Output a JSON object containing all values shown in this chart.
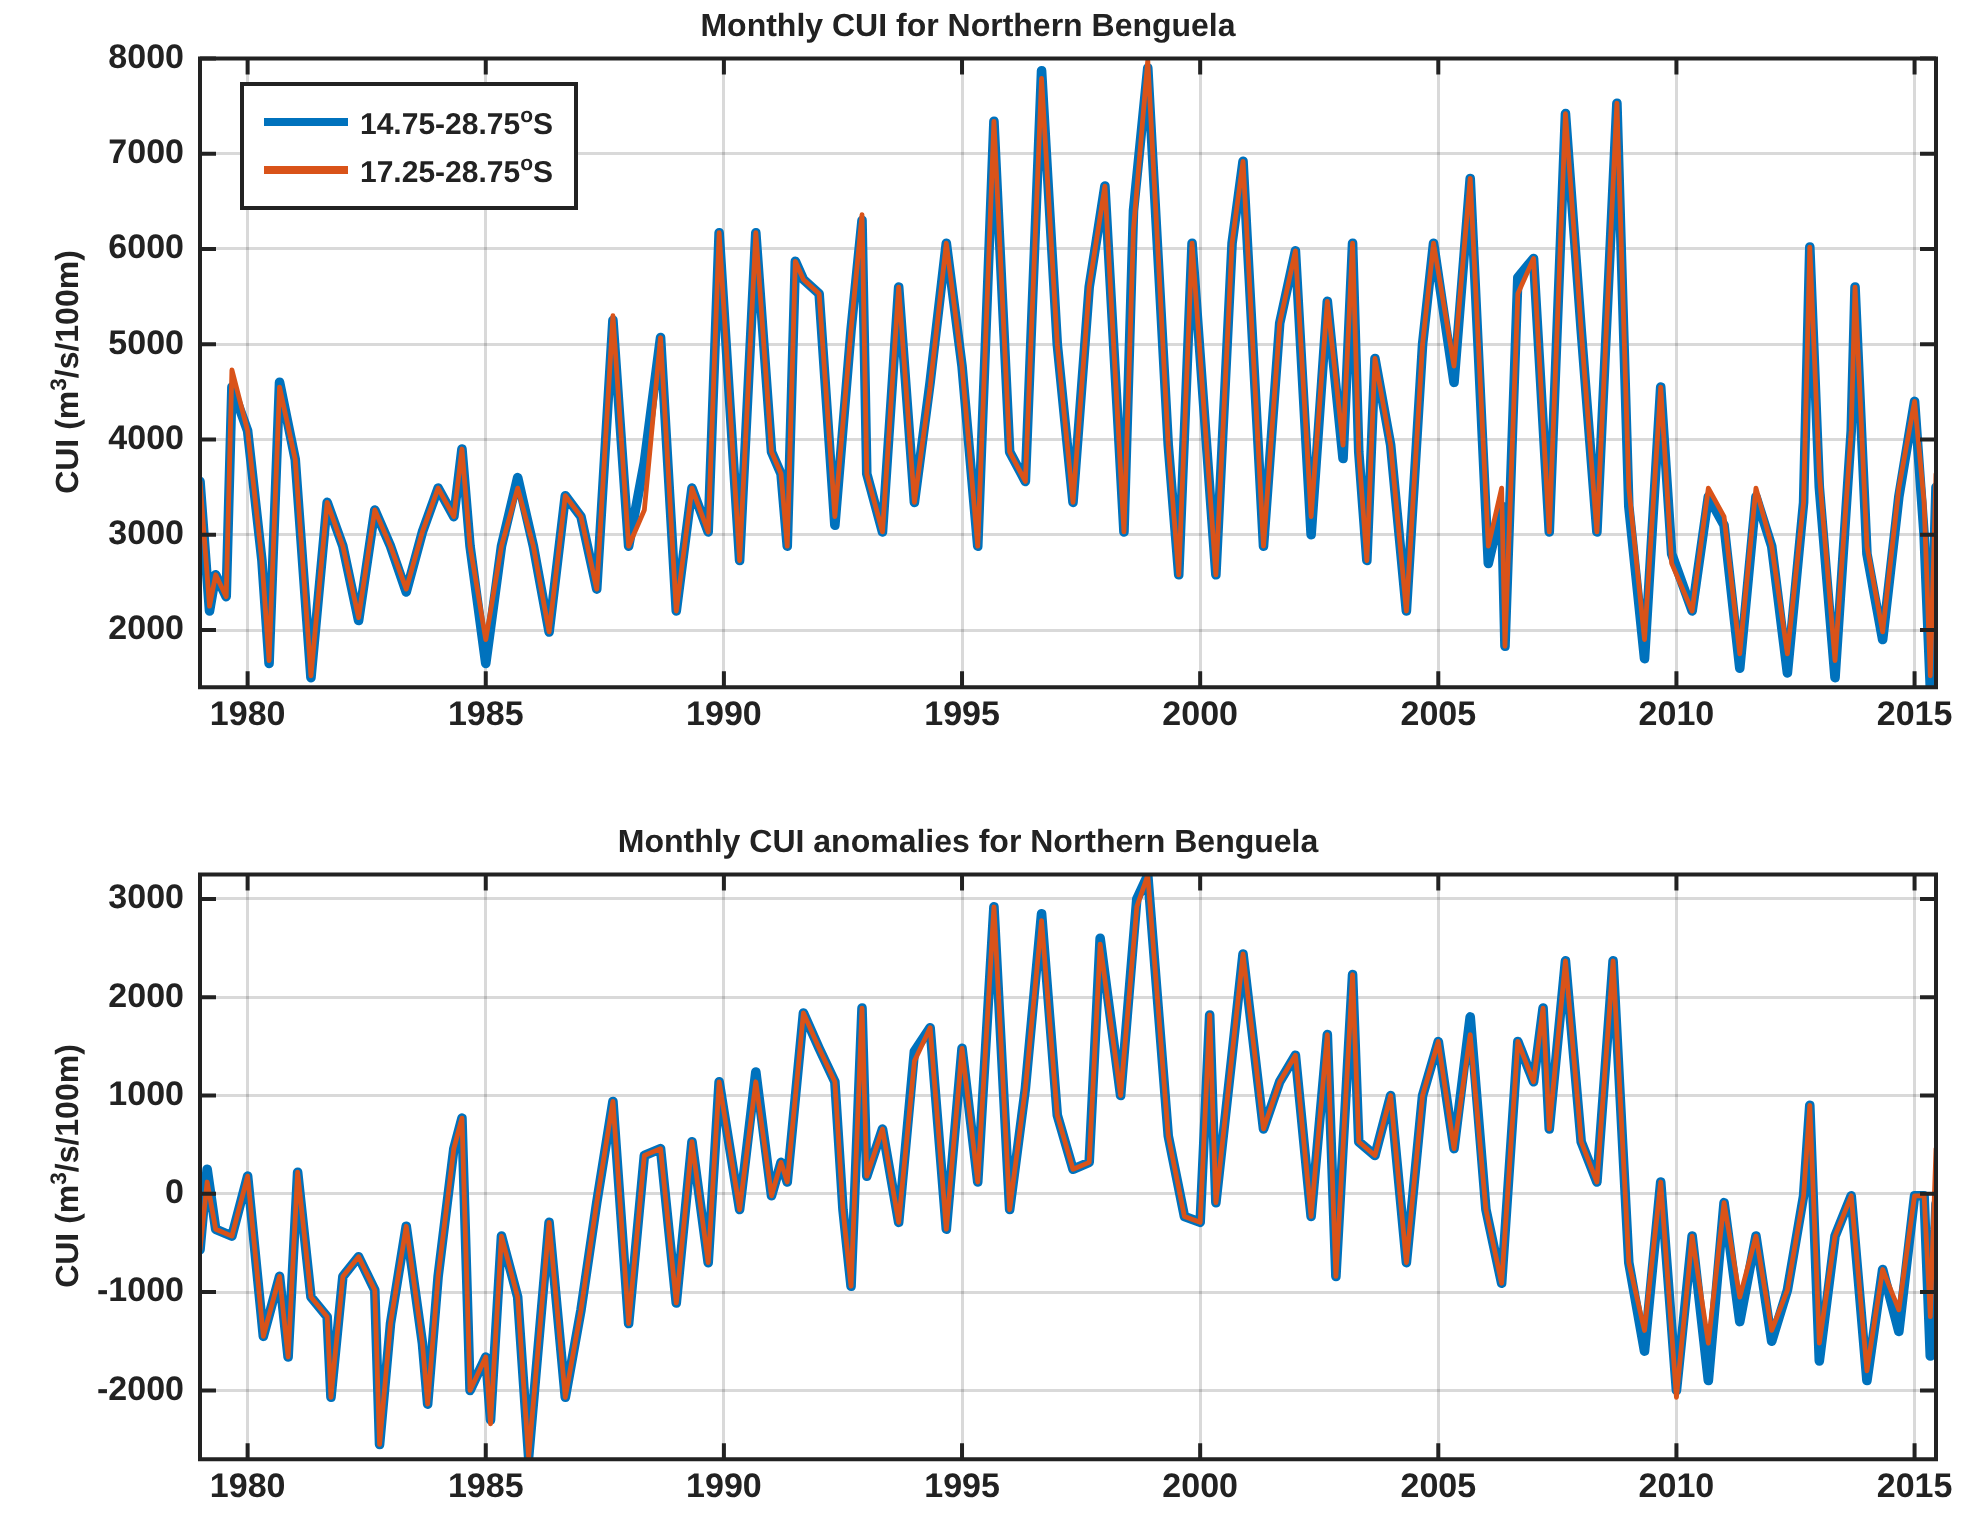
{
  "chart_data": [
    {
      "type": "line",
      "title": "Monthly CUI for Northern Benguela",
      "ylabel": "CUI (m$^{3}$/s/100m)",
      "xlim": [
        1979,
        2015.45
      ],
      "xticks": [
        1980,
        1985,
        1990,
        1995,
        2000,
        2005,
        2010,
        2015
      ],
      "ylim": [
        1400,
        8000
      ],
      "yticks": [
        2000,
        3000,
        4000,
        5000,
        6000,
        7000,
        8000
      ],
      "grid": true,
      "legend": "top left",
      "marker": "none",
      "line_style": "solid",
      "x": [
        1979.0,
        1979.2,
        1979.33,
        1979.55,
        1979.67,
        1980.0,
        1980.3,
        1980.45,
        1980.67,
        1981.0,
        1981.33,
        1981.67,
        1982.0,
        1982.33,
        1982.67,
        1983.0,
        1983.33,
        1983.67,
        1984.0,
        1984.33,
        1984.5,
        1984.67,
        1985.0,
        1985.33,
        1985.67,
        1986.0,
        1986.33,
        1986.67,
        1987.0,
        1987.33,
        1987.67,
        1988.0,
        1988.33,
        1988.67,
        1989.0,
        1989.33,
        1989.67,
        1989.9,
        1990.33,
        1990.67,
        1991.0,
        1991.2,
        1991.33,
        1991.5,
        1991.67,
        1992.0,
        1992.33,
        1992.67,
        1992.9,
        1993.0,
        1993.33,
        1993.67,
        1994.0,
        1994.33,
        1994.67,
        1995.0,
        1995.33,
        1995.67,
        1996.0,
        1996.33,
        1996.67,
        1997.0,
        1997.33,
        1997.67,
        1998.0,
        1998.4,
        1998.6,
        1998.9,
        1999.33,
        1999.55,
        1999.83,
        2000.33,
        2000.67,
        2000.9,
        2001.33,
        2001.67,
        2002.0,
        2002.33,
        2002.67,
        2003.0,
        2003.2,
        2003.33,
        2003.5,
        2003.67,
        2004.0,
        2004.33,
        2004.67,
        2004.9,
        2005.33,
        2005.67,
        2006.05,
        2006.33,
        2006.4,
        2006.67,
        2007.0,
        2007.33,
        2007.67,
        2008.0,
        2008.33,
        2008.75,
        2009.0,
        2009.33,
        2009.67,
        2009.9,
        2010.33,
        2010.67,
        2011.0,
        2011.33,
        2011.67,
        2012.0,
        2012.33,
        2012.67,
        2012.8,
        2013.0,
        2013.33,
        2013.67,
        2013.75,
        2014.0,
        2014.33,
        2014.67,
        2015.0,
        2015.2,
        2015.33,
        2015.45
      ],
      "series": [
        {
          "name": "14.75-28.75$^{o}$S",
          "color": "#0072bd",
          "values": [
            3560,
            2200,
            2580,
            2350,
            4550,
            4090,
            2730,
            1650,
            4600,
            3790,
            1500,
            3340,
            2880,
            2100,
            3260,
            2880,
            2400,
            3030,
            3490,
            3190,
            3900,
            2880,
            1650,
            2880,
            3600,
            2880,
            1980,
            3410,
            3190,
            2430,
            5250,
            2880,
            3760,
            5070,
            2200,
            3490,
            3030,
            6170,
            2730,
            6170,
            3870,
            3640,
            2880,
            5870,
            5680,
            5530,
            3100,
            5150,
            6300,
            3640,
            3030,
            5600,
            3340,
            4600,
            6060,
            4770,
            2880,
            7340,
            3870,
            3560,
            7870,
            5000,
            3340,
            5600,
            6660,
            3030,
            6400,
            7900,
            3940,
            2580,
            6060,
            2580,
            6060,
            6920,
            2880,
            5220,
            5980,
            3000,
            5450,
            3800,
            6060,
            3870,
            2730,
            4850,
            3940,
            2200,
            5000,
            6060,
            4600,
            6740,
            2700,
            3300,
            1830,
            5700,
            5900,
            3030,
            7420,
            5150,
            3030,
            7530,
            3300,
            1700,
            4550,
            2800,
            2200,
            3400,
            3100,
            1600,
            3400,
            2880,
            1550,
            3340,
            6020,
            3500,
            1500,
            4090,
            5600,
            2800,
            1900,
            3400,
            4400,
            3000,
            1400,
            3500
          ]
        },
        {
          "name": "17.25-28.75$^{o}$S",
          "color": "#d95319",
          "values": [
            3560,
            2250,
            2580,
            2350,
            4730,
            4090,
            2730,
            1680,
            4550,
            3790,
            1520,
            3340,
            2880,
            2130,
            3260,
            2880,
            2430,
            3030,
            3490,
            3190,
            3900,
            2880,
            1900,
            2880,
            3490,
            2880,
            1980,
            3410,
            3190,
            2430,
            5300,
            2880,
            3260,
            5070,
            2200,
            3490,
            3030,
            6170,
            2730,
            6170,
            3870,
            3640,
            2880,
            5870,
            5680,
            5530,
            3190,
            5150,
            6360,
            3640,
            3030,
            5600,
            3340,
            4550,
            6060,
            4770,
            2880,
            7340,
            3870,
            3560,
            7790,
            5000,
            3340,
            5600,
            6660,
            3030,
            6210,
            7980,
            3940,
            2580,
            6060,
            2580,
            6060,
            6920,
            2880,
            5220,
            5980,
            3190,
            5450,
            3940,
            6060,
            3870,
            2730,
            4850,
            3940,
            2200,
            5000,
            6060,
            4770,
            6740,
            2880,
            3490,
            1830,
            5530,
            5900,
            3030,
            7420,
            5150,
            3030,
            7530,
            3490,
            1900,
            4550,
            2700,
            2200,
            3490,
            3190,
            1750,
            3490,
            2880,
            1750,
            3340,
            6020,
            3640,
            1680,
            4090,
            5600,
            2880,
            1980,
            3490,
            4400,
            3340,
            1520,
            3640
          ]
        }
      ]
    },
    {
      "type": "line",
      "title": "Monthly CUI anomalies for Northern Benguela",
      "ylabel": "CUI (m$^{3}$/s/100m)",
      "xlim": [
        1979,
        2015.45
      ],
      "xticks": [
        1980,
        1985,
        1990,
        1995,
        2000,
        2005,
        2010,
        2015
      ],
      "ylim": [
        -2700,
        3250
      ],
      "yticks": [
        -2000,
        -1000,
        0,
        1000,
        2000,
        3000
      ],
      "grid": true,
      "marker": "none",
      "line_style": "solid",
      "x": [
        1979.0,
        1979.15,
        1979.33,
        1979.67,
        1980.0,
        1980.33,
        1980.67,
        1980.85,
        1981.05,
        1981.33,
        1981.67,
        1981.75,
        1982.0,
        1982.33,
        1982.67,
        1982.77,
        1983.0,
        1983.33,
        1983.67,
        1983.78,
        1984.0,
        1984.33,
        1984.5,
        1984.67,
        1985.0,
        1985.1,
        1985.33,
        1985.67,
        1985.9,
        1986.33,
        1986.67,
        1987.0,
        1987.33,
        1987.67,
        1988.0,
        1988.33,
        1988.67,
        1989.0,
        1989.33,
        1989.67,
        1989.9,
        1990.33,
        1990.67,
        1991.0,
        1991.2,
        1991.33,
        1991.67,
        1992.0,
        1992.33,
        1992.5,
        1992.67,
        1992.9,
        1993.0,
        1993.33,
        1993.67,
        1994.0,
        1994.33,
        1994.67,
        1995.0,
        1995.33,
        1995.67,
        1996.0,
        1996.33,
        1996.67,
        1997.0,
        1997.33,
        1997.67,
        1997.9,
        1998.33,
        1998.67,
        1998.9,
        1999.33,
        1999.67,
        2000.0,
        2000.2,
        2000.33,
        2000.67,
        2000.9,
        2001.33,
        2001.67,
        2002.0,
        2002.33,
        2002.67,
        2002.85,
        2003.2,
        2003.33,
        2003.67,
        2004.0,
        2004.33,
        2004.67,
        2005.0,
        2005.33,
        2005.67,
        2006.0,
        2006.33,
        2006.67,
        2007.0,
        2007.2,
        2007.33,
        2007.67,
        2008.0,
        2008.33,
        2008.67,
        2009.0,
        2009.33,
        2009.67,
        2010.0,
        2010.33,
        2010.67,
        2011.0,
        2011.33,
        2011.67,
        2012.0,
        2012.33,
        2012.67,
        2012.8,
        2013.0,
        2013.33,
        2013.67,
        2014.0,
        2014.33,
        2014.67,
        2015.0,
        2015.2,
        2015.33,
        2015.45
      ],
      "series": [
        {
          "color": "#0072bd",
          "values": [
            -570,
            250,
            -360,
            -430,
            180,
            -1450,
            -840,
            -1660,
            220,
            -1050,
            -1250,
            -2070,
            -840,
            -640,
            -980,
            -2550,
            -1320,
            -330,
            -1520,
            -2140,
            -840,
            460,
            770,
            -2000,
            -1660,
            -2300,
            -430,
            -1050,
            -2680,
            -290,
            -2070,
            -1180,
            -90,
            940,
            -1320,
            390,
            460,
            -1110,
            530,
            -700,
            1140,
            -160,
            1240,
            -20,
            320,
            120,
            1840,
            1480,
            1140,
            -160,
            -940,
            1890,
            180,
            660,
            -290,
            1450,
            1690,
            -360,
            1480,
            120,
            2920,
            -160,
            1070,
            2850,
            800,
            250,
            320,
            2600,
            1000,
            3000,
            3240,
            590,
            -230,
            -290,
            1820,
            -90,
            1410,
            2440,
            660,
            1140,
            1410,
            -230,
            1620,
            -840,
            2230,
            530,
            390,
            1000,
            -700,
            1000,
            1550,
            460,
            1800,
            -160,
            -910,
            1550,
            1140,
            1890,
            660,
            2370,
            530,
            120,
            2370,
            -700,
            -1600,
            120,
            -2000,
            -430,
            -1900,
            -90,
            -1300,
            -430,
            -1500,
            -980,
            -20,
            900,
            -1700,
            -430,
            -20,
            -1900,
            -770,
            -1400,
            -20,
            -20,
            -1650,
            -100
          ]
        },
        {
          "color": "#d95319",
          "values": [
            -570,
            120,
            -360,
            -430,
            180,
            -1450,
            -840,
            -1660,
            220,
            -1050,
            -1250,
            -2070,
            -840,
            -640,
            -980,
            -2550,
            -1320,
            -330,
            -1520,
            -2140,
            -840,
            460,
            770,
            -2000,
            -1660,
            -2340,
            -430,
            -1050,
            -2680,
            -290,
            -2070,
            -1180,
            -90,
            940,
            -1320,
            390,
            460,
            -1110,
            530,
            -700,
            1140,
            -160,
            1140,
            -20,
            320,
            120,
            1840,
            1480,
            1140,
            -160,
            -940,
            1890,
            180,
            660,
            -290,
            1350,
            1690,
            -360,
            1480,
            120,
            2920,
            -160,
            1070,
            2780,
            800,
            250,
            320,
            2540,
            1000,
            2920,
            3240,
            590,
            -230,
            -290,
            1820,
            -90,
            1410,
            2440,
            660,
            1140,
            1410,
            -230,
            1620,
            -840,
            2230,
            530,
            390,
            1000,
            -700,
            1000,
            1550,
            460,
            1620,
            -160,
            -910,
            1550,
            1140,
            1890,
            660,
            2370,
            530,
            120,
            2370,
            -700,
            -1390,
            120,
            -2070,
            -430,
            -1520,
            -90,
            -1050,
            -430,
            -1390,
            -980,
            -20,
            900,
            -1520,
            -430,
            -20,
            -1800,
            -770,
            -1180,
            -20,
            -20,
            -1250,
            460
          ]
        }
      ]
    }
  ]
}
